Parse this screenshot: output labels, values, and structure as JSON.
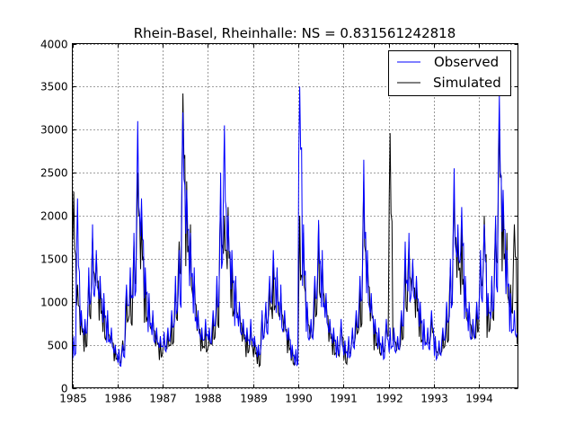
{
  "chart_data": {
    "type": "line",
    "title": "Rhein-Basel, Rheinhalle: NS = 0.831561242818",
    "xlabel": "",
    "ylabel": "",
    "xlim": [
      1985,
      1994.86
    ],
    "ylim": [
      0,
      4000
    ],
    "x_ticks": [
      "1985",
      "1986",
      "1987",
      "1988",
      "1989",
      "1990",
      "1991",
      "1992",
      "1993",
      "1994"
    ],
    "y_ticks": [
      "0",
      "500",
      "1000",
      "1500",
      "2000",
      "2500",
      "3000",
      "3500",
      "4000"
    ],
    "grid": true,
    "legend_position": "top-right",
    "series": [
      {
        "name": "Observed",
        "color": "#0000ff"
      },
      {
        "name": "Simulated",
        "color": "#000000"
      }
    ],
    "monthly_by_year": [
      {
        "year": 1985,
        "observed": [
          600,
          2200,
          900,
          800,
          1400,
          1900,
          1600,
          1300,
          1100,
          900,
          700,
          500
        ],
        "simulated": [
          2280,
          1200,
          850,
          750,
          1300,
          1750,
          1550,
          1250,
          1000,
          850,
          650,
          450
        ]
      },
      {
        "year": 1986,
        "observed": [
          450,
          500,
          1200,
          1400,
          1800,
          3100,
          2200,
          1400,
          1100,
          900,
          700,
          600
        ],
        "simulated": [
          380,
          550,
          1100,
          1300,
          1700,
          2500,
          2000,
          1300,
          1050,
          850,
          650,
          550
        ]
      },
      {
        "year": 1987,
        "observed": [
          650,
          700,
          900,
          1300,
          1600,
          3200,
          2300,
          1800,
          1400,
          900,
          700,
          800
        ],
        "simulated": [
          600,
          650,
          850,
          1200,
          1700,
          3420,
          2400,
          1900,
          1300,
          850,
          650,
          750
        ]
      },
      {
        "year": 1988,
        "observed": [
          700,
          900,
          1300,
          2500,
          3050,
          2000,
          1600,
          1300,
          1000,
          800,
          700,
          800
        ],
        "simulated": [
          650,
          850,
          1200,
          2200,
          2000,
          2100,
          1500,
          1250,
          950,
          750,
          650,
          750
        ]
      },
      {
        "year": 1989,
        "observed": [
          600,
          500,
          900,
          1000,
          1300,
          1600,
          1400,
          1200,
          900,
          700,
          500,
          450
        ],
        "simulated": [
          550,
          450,
          850,
          950,
          1200,
          1450,
          1350,
          1100,
          850,
          650,
          480,
          430
        ]
      },
      {
        "year": 1990,
        "observed": [
          3500,
          1900,
          1000,
          800,
          1300,
          1950,
          1600,
          1100,
          800,
          700,
          600,
          800
        ],
        "simulated": [
          2000,
          1800,
          950,
          750,
          1200,
          1900,
          1500,
          1050,
          780,
          650,
          560,
          750
        ]
      },
      {
        "year": 1991,
        "observed": [
          550,
          600,
          700,
          900,
          1300,
          2650,
          1600,
          1100,
          800,
          700,
          600,
          800
        ],
        "simulated": [
          500,
          560,
          650,
          850,
          1200,
          2400,
          1500,
          1050,
          750,
          650,
          560,
          750
        ]
      },
      {
        "year": 1992,
        "observed": [
          700,
          700,
          600,
          900,
          1700,
          1800,
          1500,
          1300,
          1000,
          800,
          700,
          900
        ],
        "simulated": [
          2960,
          680,
          580,
          850,
          1500,
          1700,
          1450,
          1250,
          950,
          750,
          650,
          850
        ]
      },
      {
        "year": 1993,
        "observed": [
          600,
          550,
          700,
          1000,
          1500,
          2550,
          1900,
          2100,
          1300,
          1000,
          800,
          1000
        ],
        "simulated": [
          560,
          500,
          650,
          950,
          1400,
          2200,
          1800,
          1950,
          1250,
          950,
          750,
          950
        ]
      },
      {
        "year": 1994,
        "observed": [
          1600,
          1900,
          1100,
          1300,
          2000,
          3400,
          2300,
          1600,
          1100,
          900,
          800
        ],
        "simulated": [
          1500,
          2000,
          1050,
          1250,
          1900,
          3100,
          2200,
          1800,
          1200,
          1900,
          750
        ]
      }
    ]
  }
}
